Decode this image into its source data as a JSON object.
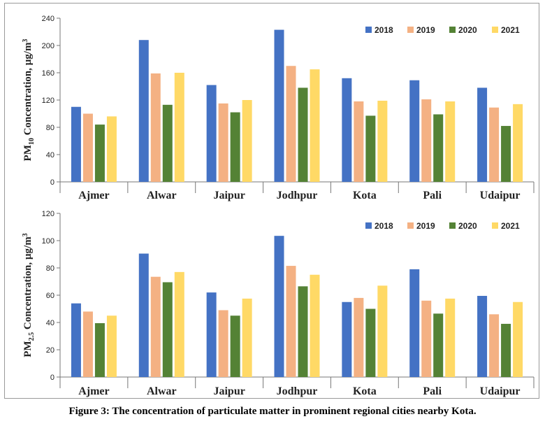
{
  "caption": "Figure 3: The concentration of particulate matter in prominent regional cities nearby Kota.",
  "colors": {
    "2018": "#4472c4",
    "2019": "#f4b183",
    "2020": "#548235",
    "2021": "#ffd966"
  },
  "chart_data": [
    {
      "type": "bar",
      "title": "",
      "ylabel": {
        "base": "PM",
        "sub": "10",
        "rest": " Concentration, µg/m",
        "sup": "3"
      },
      "xlabel": "",
      "ylim": [
        0,
        240
      ],
      "yticks": [
        "0",
        "40",
        "80",
        "120",
        "160",
        "200",
        "240"
      ],
      "grid": false,
      "legend": "top-right",
      "categories": [
        "Ajmer",
        "Alwar",
        "Jaipur",
        "Jodhpur",
        "Kota",
        "Pali",
        "Udaipur"
      ],
      "series": [
        {
          "name": "2018",
          "values": [
            110,
            208,
            142,
            223,
            152,
            149,
            138
          ]
        },
        {
          "name": "2019",
          "values": [
            100,
            159,
            115,
            170,
            118,
            121,
            109
          ]
        },
        {
          "name": "2020",
          "values": [
            84,
            113,
            102,
            138,
            97,
            99,
            82
          ]
        },
        {
          "name": "2021",
          "values": [
            96,
            160,
            120,
            165,
            119,
            118,
            114
          ]
        }
      ]
    },
    {
      "type": "bar",
      "title": "",
      "ylabel": {
        "base": "PM",
        "sub": "2.5",
        "rest": " Concentration, µg/m",
        "sup": "3"
      },
      "xlabel": "",
      "ylim": [
        0,
        120
      ],
      "yticks": [
        "0",
        "20",
        "40",
        "60",
        "80",
        "100",
        "120"
      ],
      "grid": false,
      "legend": "top-right",
      "categories": [
        "Ajmer",
        "Alwar",
        "Jaipur",
        "Jodhpur",
        "Kota",
        "Pali",
        "Udaipur"
      ],
      "series": [
        {
          "name": "2018",
          "values": [
            54,
            90.5,
            62,
            103.5,
            55,
            79,
            59.5
          ]
        },
        {
          "name": "2019",
          "values": [
            48,
            73.5,
            49,
            81.5,
            58,
            56,
            46
          ]
        },
        {
          "name": "2020",
          "values": [
            39.5,
            69.5,
            45,
            66.5,
            50,
            46.5,
            39
          ]
        },
        {
          "name": "2021",
          "values": [
            45,
            77,
            57.5,
            75,
            67,
            57.5,
            55
          ]
        }
      ]
    }
  ]
}
